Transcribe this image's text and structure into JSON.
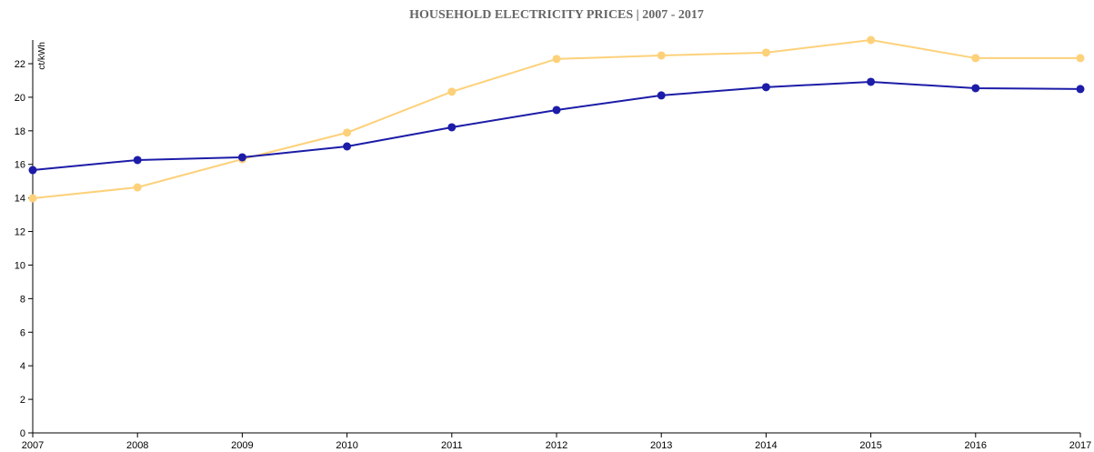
{
  "chart_data": {
    "type": "line",
    "title": "HOUSEHOLD ELECTRICITY PRICES | 2007 - 2017",
    "y_label": "ct/kWh",
    "x": [
      2007,
      2008,
      2009,
      2010,
      2011,
      2012,
      2013,
      2014,
      2015,
      2016,
      2017
    ],
    "series": [
      {
        "color": "#fdd17a",
        "values": [
          13.98,
          14.63,
          16.31,
          17.89,
          20.33,
          22.28,
          22.49,
          22.66,
          23.41,
          22.33,
          22.33
        ]
      },
      {
        "color": "#1c1ca8",
        "values": [
          15.66,
          16.26,
          16.42,
          17.07,
          18.21,
          19.24,
          20.11,
          20.6,
          20.92,
          20.54,
          20.49
        ]
      }
    ],
    "xlim": [
      2007,
      2017
    ],
    "xticks": [
      2007,
      2008,
      2009,
      2010,
      2011,
      2012,
      2013,
      2014,
      2015,
      2016,
      2017
    ],
    "ylim": [
      0,
      23.41
    ],
    "yticks": [
      0,
      2,
      4,
      6,
      8,
      10,
      12,
      14,
      16,
      18,
      20,
      22
    ]
  }
}
